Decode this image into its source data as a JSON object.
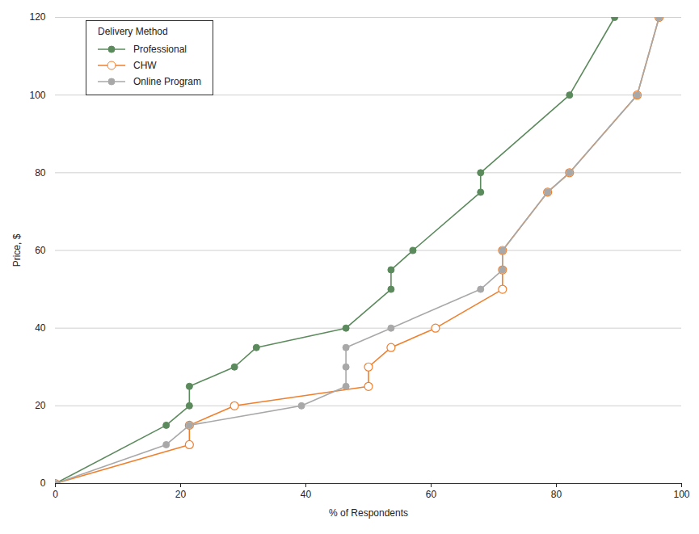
{
  "chart_data": {
    "type": "line",
    "x_label": "% of Respondents",
    "y_label": "Price, $",
    "legend_title": "Delivery Method",
    "legend": "top-left",
    "grid": true,
    "xlim": [
      0,
      100
    ],
    "xticks": [
      0,
      20,
      40,
      60,
      80,
      100
    ],
    "ylim": [
      0,
      120
    ],
    "yticks": [
      0,
      20,
      40,
      60,
      80,
      100,
      120
    ],
    "series": [
      {
        "name": "Professional",
        "color": "#5b8a5c",
        "marker": "circle",
        "x": [
          0,
          17.7,
          21.4,
          21.4,
          28.6,
          32.1,
          46.4,
          53.6,
          53.6,
          57.1,
          67.9,
          67.9,
          82.1,
          89.3
        ],
        "values": [
          0,
          15,
          20,
          25,
          30,
          35,
          40,
          50,
          55,
          60,
          75,
          80,
          100,
          120
        ]
      },
      {
        "name": "CHW",
        "color": "#f07f2c",
        "marker": "open-circle",
        "x": [
          0,
          21.4,
          21.4,
          28.6,
          50,
          50,
          53.6,
          60.7,
          71.4,
          71.4,
          71.4,
          78.6,
          82.1,
          92.9,
          96.4
        ],
        "values": [
          0,
          10,
          15,
          20,
          25,
          30,
          35,
          40,
          50,
          55,
          60,
          75,
          80,
          100,
          120
        ]
      },
      {
        "name": "Online Program",
        "color": "#a8a8a8",
        "marker": "circle",
        "x": [
          0,
          17.7,
          21.4,
          39.3,
          46.4,
          46.4,
          46.4,
          53.6,
          67.9,
          71.4,
          71.4,
          78.6,
          82.1,
          92.9,
          96.4
        ],
        "values": [
          0,
          10,
          15,
          20,
          25,
          30,
          35,
          40,
          50,
          55,
          60,
          75,
          80,
          100,
          120
        ]
      }
    ]
  }
}
